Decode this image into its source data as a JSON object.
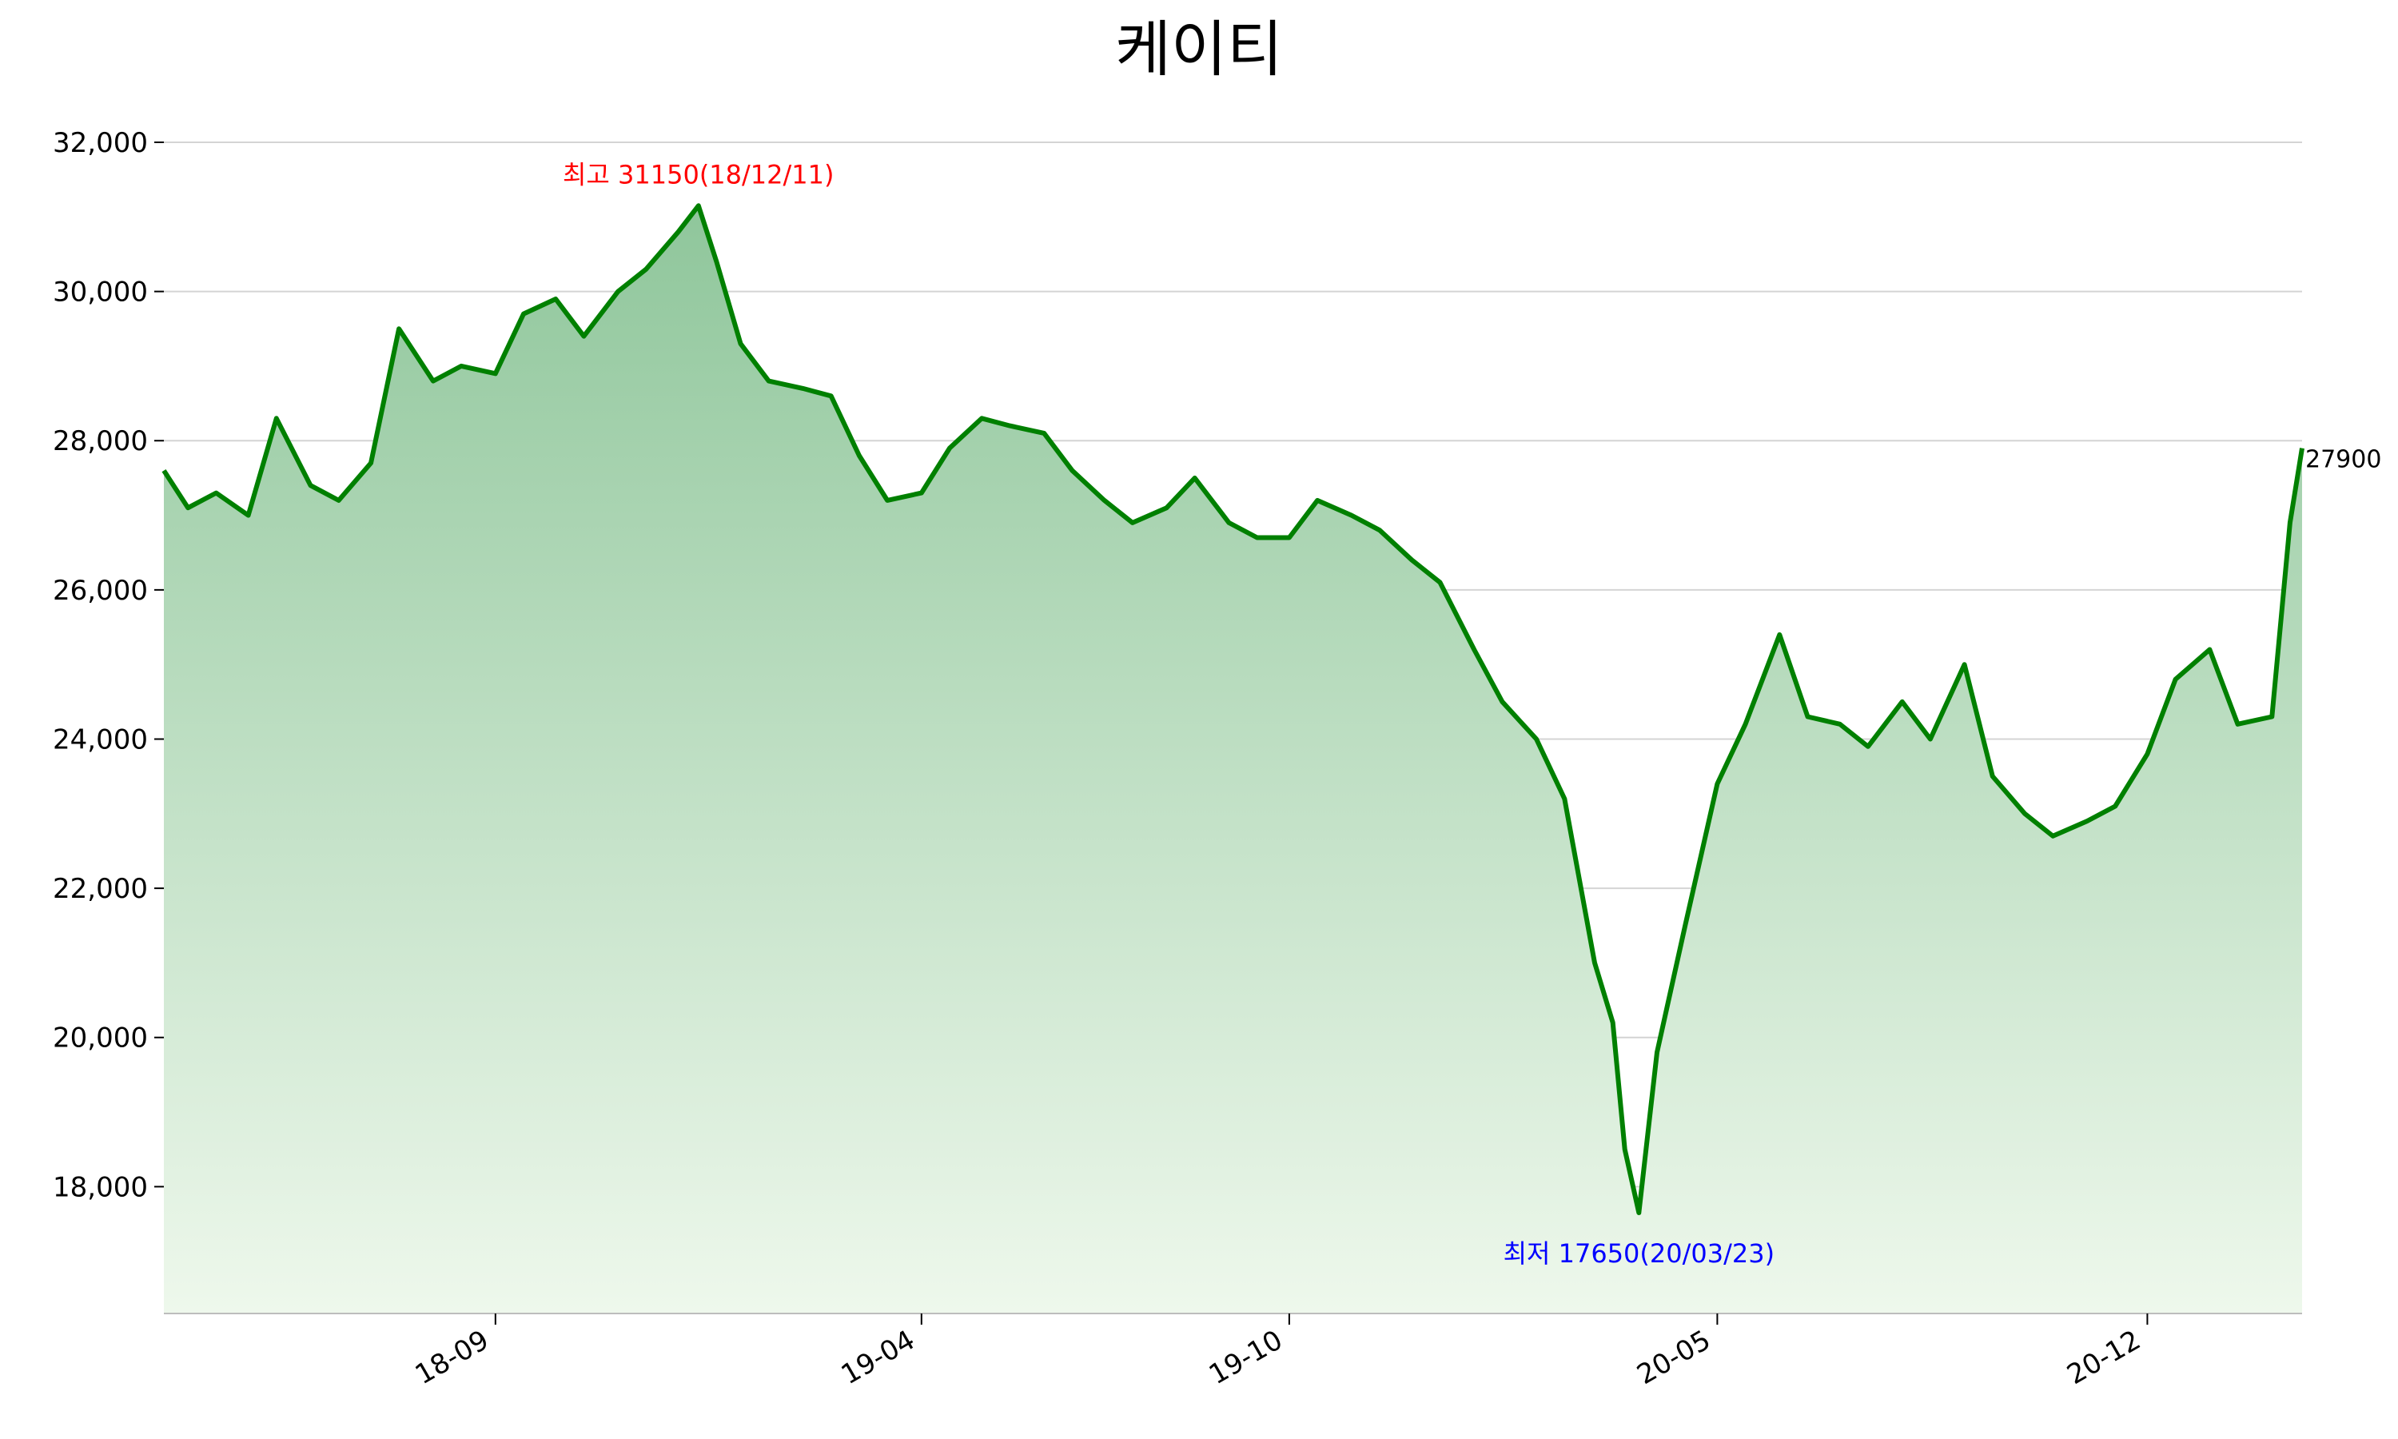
{
  "chart_data": {
    "type": "area",
    "title": "케이티",
    "xlabel": "",
    "ylabel": "",
    "ylim": [
      16300,
      32300
    ],
    "yticks": [
      18000,
      20000,
      22000,
      24000,
      26000,
      28000,
      30000,
      32000
    ],
    "ytick_labels": [
      "18,000",
      "20,000",
      "22,000",
      "24,000",
      "26,000",
      "28,000",
      "30,000",
      "32,000"
    ],
    "xlim": [
      "2018-03-20",
      "2021-02-16"
    ],
    "xticks": [
      "2018-09-01",
      "2019-04-01",
      "2019-10-01",
      "2020-05-01",
      "2020-12-01"
    ],
    "xtick_labels": [
      "18-09",
      "19-04",
      "19-10",
      "20-05",
      "20-12"
    ],
    "grid": true,
    "line_color": "#008000",
    "fill_color_top": "#8fc69b",
    "fill_color_bottom": "#eef8ec",
    "series": [
      {
        "x": [
          "2018-03-20",
          "2018-04-01",
          "2018-04-15",
          "2018-05-01",
          "2018-05-15",
          "2018-06-01",
          "2018-06-15",
          "2018-07-01",
          "2018-07-15",
          "2018-08-01",
          "2018-08-15",
          "2018-09-01",
          "2018-09-15",
          "2018-10-01",
          "2018-10-15",
          "2018-11-01",
          "2018-11-15",
          "2018-12-01",
          "2018-12-11",
          "2018-12-20",
          "2019-01-01",
          "2019-01-15",
          "2019-02-01",
          "2019-02-15",
          "2019-03-01",
          "2019-03-15",
          "2019-04-01",
          "2019-04-15",
          "2019-05-01",
          "2019-05-15",
          "2019-06-01",
          "2019-06-15",
          "2019-07-01",
          "2019-07-15",
          "2019-08-01",
          "2019-08-15",
          "2019-09-01",
          "2019-09-15",
          "2019-10-01",
          "2019-10-15",
          "2019-11-01",
          "2019-11-15",
          "2019-12-01",
          "2019-12-15",
          "2020-01-01",
          "2020-01-15",
          "2020-02-01",
          "2020-02-15",
          "2020-03-01",
          "2020-03-10",
          "2020-03-16",
          "2020-03-23",
          "2020-04-01",
          "2020-04-15",
          "2020-05-01",
          "2020-05-15",
          "2020-06-01",
          "2020-06-15",
          "2020-07-01",
          "2020-07-15",
          "2020-08-01",
          "2020-08-15",
          "2020-09-01",
          "2020-09-15",
          "2020-10-01",
          "2020-10-15",
          "2020-11-01",
          "2020-11-15",
          "2020-12-01",
          "2020-12-15",
          "2021-01-01",
          "2021-01-15",
          "2021-02-01",
          "2021-02-10",
          "2021-02-16"
        ],
        "values": [
          27600,
          27100,
          27300,
          27000,
          28300,
          27400,
          27200,
          27700,
          29500,
          28800,
          29000,
          28900,
          29700,
          29900,
          29400,
          30000,
          30300,
          30800,
          31150,
          30400,
          29300,
          28800,
          28700,
          28600,
          27800,
          27200,
          27300,
          27900,
          28300,
          28200,
          28100,
          27600,
          27200,
          26900,
          27100,
          27500,
          26900,
          26700,
          26700,
          27200,
          27000,
          26800,
          26400,
          26100,
          25200,
          24500,
          24000,
          23200,
          21000,
          20200,
          18500,
          17650,
          19800,
          21500,
          23400,
          24200,
          25400,
          24300,
          24200,
          23900,
          24500,
          24000,
          25000,
          23500,
          23000,
          22700,
          22900,
          23100,
          23800,
          24800,
          25200,
          24200,
          24300,
          26900,
          27900
        ]
      }
    ],
    "annotations": [
      {
        "label": "최고 31150(18/12/11)",
        "x": "2018-12-11",
        "y": 31150,
        "color": "#ff0000"
      },
      {
        "label": "최저 17650(20/03/23)",
        "x": "2020-03-23",
        "y": 17650,
        "color": "#0000ff"
      }
    ],
    "last_value_label": "27900"
  }
}
